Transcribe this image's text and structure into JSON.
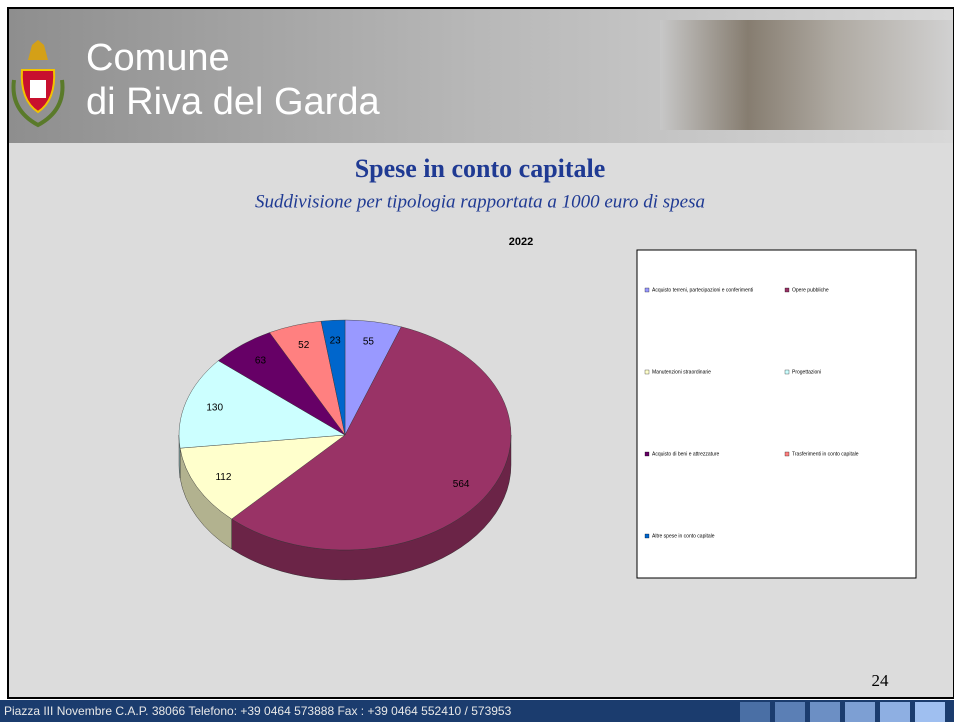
{
  "header": {
    "line1": "Comune",
    "line2": "di Riva del Garda"
  },
  "slide_title": "Spese in conto capitale",
  "slide_subtitle": "Suddivisione per tipologia rapportata a 1000 euro di spesa",
  "chart_data": {
    "type": "pie3d",
    "title": "2022",
    "categories": [
      "Acquisto terreni, partecipazioni e conferimenti",
      "Opere pubbliche",
      "Manutenzioni straordinarie",
      "Progettazioni",
      "Acquisto di beni e attrezzature",
      "Trasferimenti in conto capitale",
      "Altre spese in conto capitale"
    ],
    "values": [
      55,
      564,
      112,
      130,
      63,
      52,
      23
    ],
    "colors": [
      "#9999ff",
      "#993366",
      "#ffffcc",
      "#ccffff",
      "#660066",
      "#ff8080",
      "#0066cc"
    ],
    "legend": "right"
  },
  "page_number": "24",
  "footer": "Piazza III Novembre C.A.P. 38066 Telefono: +39 0464 573888 Fax : +39 0464 552410 / 573953"
}
